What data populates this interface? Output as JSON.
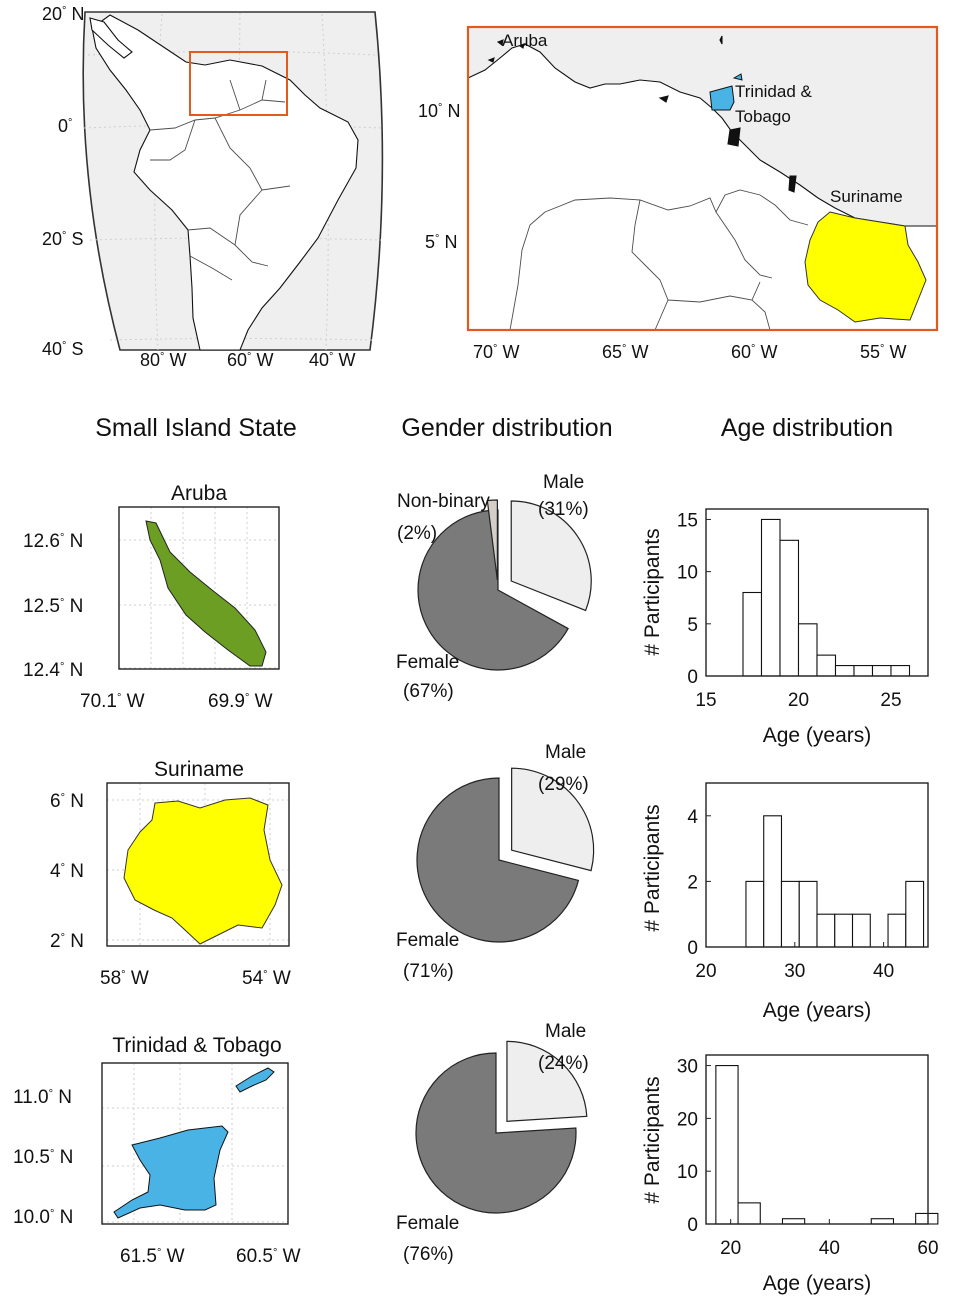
{
  "overview_map": {
    "lat_labels": [
      {
        "deg": "20",
        "hemi": "N"
      },
      {
        "deg": "0",
        "hemi": ""
      },
      {
        "deg": "20",
        "hemi": "S"
      },
      {
        "deg": "40",
        "hemi": "S"
      }
    ],
    "lon_labels": [
      {
        "deg": "80",
        "hemi": "W"
      },
      {
        "deg": "60",
        "hemi": "W"
      },
      {
        "deg": "40",
        "hemi": "W"
      }
    ],
    "highlight_color": "#e15b1f"
  },
  "zoom_map": {
    "places": [
      "Aruba",
      "Trinidad &",
      "Tobago",
      "Suriname"
    ],
    "lat_labels": [
      {
        "deg": "10",
        "hemi": "N"
      },
      {
        "deg": "5",
        "hemi": "N"
      }
    ],
    "lon_labels": [
      {
        "deg": "70",
        "hemi": "W"
      },
      {
        "deg": "65",
        "hemi": "W"
      },
      {
        "deg": "60",
        "hemi": "W"
      },
      {
        "deg": "55",
        "hemi": "W"
      }
    ],
    "frame_color": "#e15b1f"
  },
  "column_titles": {
    "states": "Small Island State",
    "gender": "Gender distribution",
    "age": "Age distribution"
  },
  "states": [
    {
      "name": "Aruba",
      "fill_color": "#6b9e23",
      "lat_labels": [
        {
          "deg": "12.6",
          "hemi": "N"
        },
        {
          "deg": "12.5",
          "hemi": "N"
        },
        {
          "deg": "12.4",
          "hemi": "N"
        }
      ],
      "lon_labels": [
        {
          "deg": "70.1",
          "hemi": "W"
        },
        {
          "deg": "69.9",
          "hemi": "W"
        }
      ]
    },
    {
      "name": "Suriname",
      "fill_color": "#ffff00",
      "lat_labels": [
        {
          "deg": "6",
          "hemi": "N"
        },
        {
          "deg": "4",
          "hemi": "N"
        },
        {
          "deg": "2",
          "hemi": "N"
        }
      ],
      "lon_labels": [
        {
          "deg": "58",
          "hemi": "W"
        },
        {
          "deg": "54",
          "hemi": "W"
        }
      ]
    },
    {
      "name": "Trinidad & Tobago",
      "fill_color": "#4ab3e6",
      "lat_labels": [
        {
          "deg": "11.0",
          "hemi": "N"
        },
        {
          "deg": "10.5",
          "hemi": "N"
        },
        {
          "deg": "10.0",
          "hemi": "N"
        }
      ],
      "lon_labels": [
        {
          "deg": "61.5",
          "hemi": "W"
        },
        {
          "deg": "60.5",
          "hemi": "W"
        }
      ]
    }
  ],
  "chart_data": [
    {
      "type": "pie",
      "title": "",
      "categories": [
        "Female",
        "Male",
        "Non-binary"
      ],
      "values": [
        67,
        31,
        2
      ],
      "labels": [
        {
          "name": "Female",
          "pct": "(67%)"
        },
        {
          "name": "Male",
          "pct": "(31%)"
        },
        {
          "name": "Non-binary",
          "pct": "(2%)"
        }
      ],
      "colors": [
        "#7a7a7a",
        "#eeeeee",
        "#d4d0c8"
      ]
    },
    {
      "type": "bar",
      "title": "",
      "xlabel": "Age (years)",
      "ylabel": "# Participants",
      "xlim": [
        15,
        27
      ],
      "ylim": [
        0,
        16
      ],
      "xticks": [
        15,
        20,
        25
      ],
      "yticks": [
        0,
        5,
        10,
        15
      ],
      "bin_edges": [
        17,
        18,
        19,
        20,
        21,
        22,
        23,
        24,
        25,
        26
      ],
      "values": [
        8,
        15,
        13,
        5,
        2,
        1,
        1,
        1,
        1
      ]
    },
    {
      "type": "pie",
      "title": "",
      "categories": [
        "Female",
        "Male"
      ],
      "values": [
        71,
        29
      ],
      "labels": [
        {
          "name": "Female",
          "pct": "(71%)"
        },
        {
          "name": "Male",
          "pct": "(29%)"
        }
      ],
      "colors": [
        "#7a7a7a",
        "#eeeeee"
      ]
    },
    {
      "type": "bar",
      "title": "",
      "xlabel": "Age (years)",
      "ylabel": "# Participants",
      "xlim": [
        20,
        45
      ],
      "ylim": [
        0,
        5
      ],
      "xticks": [
        20,
        30,
        40
      ],
      "yticks": [
        0,
        2,
        4
      ],
      "bin_edges": [
        24.5,
        26.5,
        28.5,
        30.5,
        32.5,
        34.5,
        36.5,
        38.5,
        40.5,
        42.5,
        44.5
      ],
      "values": [
        2,
        4,
        2,
        2,
        1,
        1,
        1,
        0,
        1,
        2
      ]
    },
    {
      "type": "pie",
      "title": "",
      "categories": [
        "Female",
        "Male"
      ],
      "values": [
        76,
        24
      ],
      "labels": [
        {
          "name": "Female",
          "pct": "(76%)"
        },
        {
          "name": "Male",
          "pct": "(24%)"
        }
      ],
      "colors": [
        "#7a7a7a",
        "#eeeeee"
      ]
    },
    {
      "type": "bar",
      "title": "",
      "xlabel": "Age (years)",
      "ylabel": "# Participants",
      "xlim": [
        15,
        60
      ],
      "ylim": [
        0,
        32
      ],
      "xticks": [
        20,
        40,
        60
      ],
      "yticks": [
        0,
        10,
        20,
        30
      ],
      "bin_edges": [
        17,
        21.5,
        26,
        30.5,
        35,
        39.5,
        44,
        48.5,
        53,
        57.5,
        62
      ],
      "values": [
        30,
        4,
        0,
        1,
        0,
        0,
        0,
        1,
        0,
        2
      ]
    }
  ]
}
